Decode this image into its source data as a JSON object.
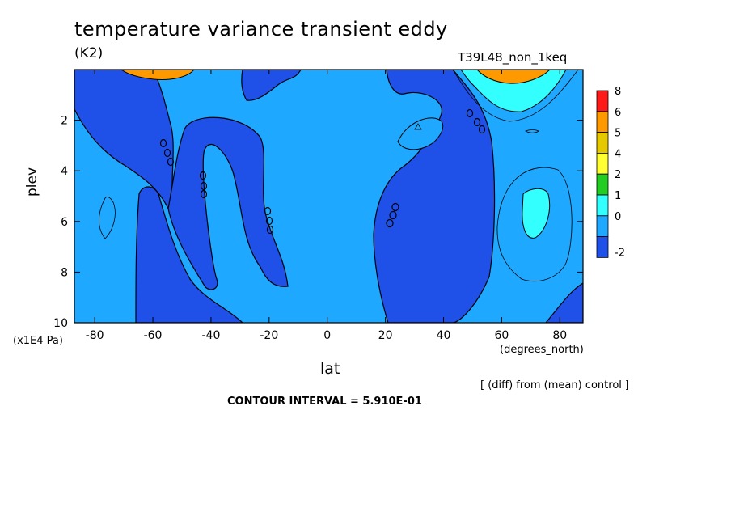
{
  "header": {
    "title": "temperature variance transient eddy",
    "units": "(K2)",
    "run_label": "T39L48_non_1keq"
  },
  "footer": {
    "comparison_note": "[ (diff) from (mean) control ]",
    "contour_interval": "CONTOUR INTERVAL = 5.910E-01"
  },
  "chart_data": {
    "type": "heatmap",
    "title": "temperature variance transient eddy",
    "xlabel": "lat",
    "ylabel": "plev",
    "x_unit_label": "(degrees_north)",
    "y_unit_label": "(x1E4 Pa)",
    "xlim": [
      -87,
      88
    ],
    "ylim": [
      10,
      0
    ],
    "x_ticks": [
      -80,
      -60,
      -40,
      -20,
      0,
      20,
      40,
      60,
      80
    ],
    "y_ticks": [
      2,
      4,
      6,
      8,
      10
    ],
    "contour_interval": 0.591,
    "colorbar": {
      "levels": [
        "8",
        "6",
        "5",
        "4",
        "2",
        "1",
        "0",
        "-2"
      ],
      "colors": [
        "#ff1a1a",
        "#ff9900",
        "#e6c800",
        "#ffff33",
        "#22cc22",
        "#33ffff",
        "#1ea8ff",
        "#1f50e8"
      ]
    },
    "fill_classes": {
      "negative": "#1f50e8",
      "background": "#1ea8ff",
      "low_positive": "#33ffff",
      "moderate": "#22cc22",
      "high": "#ff9900"
    }
  }
}
